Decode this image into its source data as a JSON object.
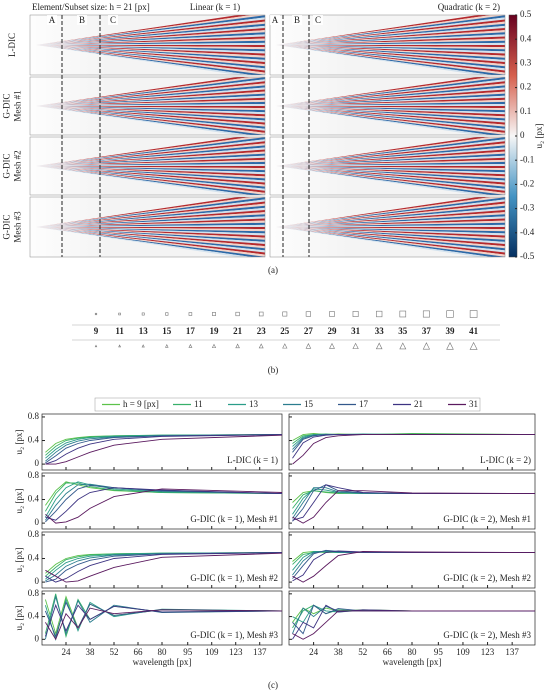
{
  "panel_a": {
    "header": {
      "left": "Element/Subset size: h = 21 [px]",
      "middle": "Linear (k = 1)",
      "right": "Quadratic (k = 2)"
    },
    "rows": [
      [
        "L-DIC"
      ],
      [
        "G-DIC",
        "Mesh #1"
      ],
      [
        "G-DIC",
        "Mesh #2"
      ],
      [
        "G-DIC",
        "Mesh #3"
      ]
    ],
    "markers": [
      "A",
      "B",
      "C"
    ],
    "colorbar": {
      "label": "u₂ [px]",
      "lim": [
        -0.5,
        0.5
      ],
      "ticks": [
        0.5,
        0.4,
        0.3,
        0.2,
        0.1,
        0,
        -0.1,
        -0.2,
        -0.3,
        -0.4,
        -0.5
      ]
    },
    "caption": "(a)"
  },
  "panel_b": {
    "sizes": [
      9,
      11,
      13,
      15,
      17,
      19,
      21,
      23,
      25,
      27,
      29,
      31,
      33,
      35,
      37,
      39,
      41
    ],
    "caption": "(b)"
  },
  "panel_c": {
    "series": [
      {
        "name": "h = 9 [px]",
        "color": "#5cc24a"
      },
      {
        "name": "11",
        "color": "#37b06a"
      },
      {
        "name": "13",
        "color": "#2a9d89"
      },
      {
        "name": "15",
        "color": "#2b7d8e"
      },
      {
        "name": "17",
        "color": "#33588c"
      },
      {
        "name": "21",
        "color": "#3d3382"
      },
      {
        "name": "31",
        "color": "#5b1a5f"
      }
    ],
    "x": [
      12,
      18,
      24,
      31,
      38,
      52,
      80,
      150
    ],
    "xlim": [
      10,
      150
    ],
    "xticks": [
      24,
      38,
      52,
      66,
      80,
      95,
      109,
      123,
      137
    ],
    "ylim": [
      -0.1,
      0.85
    ],
    "yticks": [
      0,
      0.4,
      0.8
    ],
    "xlabel": "wavelength [px]",
    "ylabel": "u₂ [px]",
    "subplots": [
      {
        "label": "L-DIC (k = 1)",
        "values": [
          [
            0.2,
            0.35,
            0.42,
            0.45,
            0.47,
            0.48,
            0.49,
            0.5
          ],
          [
            0.15,
            0.3,
            0.4,
            0.44,
            0.46,
            0.48,
            0.49,
            0.5
          ],
          [
            0.1,
            0.25,
            0.36,
            0.42,
            0.45,
            0.47,
            0.49,
            0.5
          ],
          [
            0.05,
            0.2,
            0.32,
            0.39,
            0.43,
            0.46,
            0.48,
            0.5
          ],
          [
            0.02,
            0.14,
            0.27,
            0.35,
            0.4,
            0.45,
            0.48,
            0.5
          ],
          [
            0,
            0.06,
            0.17,
            0.27,
            0.34,
            0.42,
            0.47,
            0.5
          ],
          [
            0,
            0,
            0.04,
            0.12,
            0.2,
            0.32,
            0.42,
            0.49
          ]
        ]
      },
      {
        "label": "L-DIC (k = 2)",
        "values": [
          [
            0.4,
            0.5,
            0.52,
            0.5,
            0.51,
            0.5,
            0.52,
            0.5
          ],
          [
            0.35,
            0.48,
            0.5,
            0.51,
            0.5,
            0.5,
            0.51,
            0.5
          ],
          [
            0.3,
            0.46,
            0.5,
            0.5,
            0.5,
            0.51,
            0.5,
            0.5
          ],
          [
            0.25,
            0.44,
            0.49,
            0.5,
            0.5,
            0.5,
            0.5,
            0.5
          ],
          [
            0.2,
            0.42,
            0.48,
            0.5,
            0.5,
            0.5,
            0.5,
            0.5
          ],
          [
            0.1,
            0.36,
            0.46,
            0.49,
            0.5,
            0.5,
            0.5,
            0.5
          ],
          [
            0,
            0.15,
            0.35,
            0.45,
            0.48,
            0.5,
            0.5,
            0.5
          ]
        ]
      },
      {
        "label": "G-DIC (k = 1), Mesh #1",
        "values": [
          [
            0.3,
            0.55,
            0.7,
            0.65,
            0.6,
            0.55,
            0.52,
            0.5
          ],
          [
            0.2,
            0.5,
            0.68,
            0.68,
            0.62,
            0.56,
            0.52,
            0.5
          ],
          [
            0.1,
            0.4,
            0.6,
            0.7,
            0.65,
            0.58,
            0.53,
            0.5
          ],
          [
            0.05,
            0.3,
            0.5,
            0.65,
            0.66,
            0.6,
            0.54,
            0.5
          ],
          [
            0.02,
            0.2,
            0.4,
            0.58,
            0.64,
            0.6,
            0.55,
            0.5
          ],
          [
            0.1,
            0.05,
            0.2,
            0.4,
            0.52,
            0.6,
            0.56,
            0.5
          ],
          [
            0.15,
            0,
            0.02,
            0.1,
            0.25,
            0.45,
            0.58,
            0.52
          ]
        ]
      },
      {
        "label": "G-DIC (k = 2), Mesh #1",
        "values": [
          [
            0.35,
            0.52,
            0.55,
            0.52,
            0.5,
            0.51,
            0.5,
            0.5
          ],
          [
            0.25,
            0.48,
            0.55,
            0.53,
            0.51,
            0.5,
            0.5,
            0.5
          ],
          [
            0.15,
            0.42,
            0.58,
            0.56,
            0.52,
            0.5,
            0.5,
            0.5
          ],
          [
            0.08,
            0.35,
            0.6,
            0.6,
            0.53,
            0.51,
            0.5,
            0.5
          ],
          [
            0.03,
            0.25,
            0.55,
            0.65,
            0.55,
            0.51,
            0.5,
            0.5
          ],
          [
            0.05,
            0.1,
            0.35,
            0.65,
            0.6,
            0.52,
            0.5,
            0.5
          ],
          [
            0.1,
            0,
            0.1,
            0.35,
            0.55,
            0.55,
            0.51,
            0.5
          ]
        ]
      },
      {
        "label": "G-DIC (k = 1), Mesh #2",
        "values": [
          [
            0.15,
            0.3,
            0.4,
            0.45,
            0.47,
            0.48,
            0.49,
            0.5
          ],
          [
            0.1,
            0.25,
            0.38,
            0.43,
            0.46,
            0.48,
            0.49,
            0.5
          ],
          [
            0.05,
            0.2,
            0.33,
            0.4,
            0.44,
            0.47,
            0.49,
            0.5
          ],
          [
            0.02,
            0.12,
            0.27,
            0.36,
            0.41,
            0.46,
            0.48,
            0.5
          ],
          [
            0,
            0.05,
            0.2,
            0.3,
            0.37,
            0.44,
            0.48,
            0.5
          ],
          [
            0.1,
            0,
            0.06,
            0.18,
            0.28,
            0.4,
            0.47,
            0.5
          ],
          [
            0.2,
            0.1,
            0,
            0.02,
            0.1,
            0.25,
            0.42,
            0.49
          ]
        ]
      },
      {
        "label": "G-DIC (k = 2), Mesh #2",
        "values": [
          [
            0.35,
            0.5,
            0.52,
            0.5,
            0.51,
            0.5,
            0.5,
            0.5
          ],
          [
            0.3,
            0.47,
            0.5,
            0.51,
            0.5,
            0.5,
            0.5,
            0.5
          ],
          [
            0.2,
            0.42,
            0.52,
            0.52,
            0.5,
            0.5,
            0.5,
            0.5
          ],
          [
            0.12,
            0.36,
            0.5,
            0.53,
            0.51,
            0.5,
            0.5,
            0.5
          ],
          [
            0.06,
            0.28,
            0.48,
            0.54,
            0.52,
            0.5,
            0.5,
            0.5
          ],
          [
            0.02,
            0.12,
            0.38,
            0.5,
            0.53,
            0.51,
            0.5,
            0.5
          ],
          [
            0.1,
            0,
            0.1,
            0.28,
            0.45,
            0.52,
            0.51,
            0.5
          ]
        ]
      },
      {
        "label": "G-DIC (k = 1), Mesh #3",
        "values": [
          [
            0.7,
            0.1,
            0.75,
            0.2,
            0.62,
            0.42,
            0.52,
            0.5
          ],
          [
            0.1,
            0.8,
            0.05,
            0.7,
            0.35,
            0.58,
            0.48,
            0.5
          ],
          [
            0.6,
            0,
            0.7,
            0.15,
            0.65,
            0.4,
            0.53,
            0.5
          ],
          [
            0,
            0.75,
            0.1,
            0.68,
            0.3,
            0.6,
            0.47,
            0.5
          ],
          [
            0.5,
            0.05,
            0.65,
            0.2,
            0.62,
            0.42,
            0.52,
            0.5
          ],
          [
            0.05,
            0.6,
            0.15,
            0.6,
            0.35,
            0.58,
            0.48,
            0.5
          ],
          [
            0.3,
            0,
            0.45,
            0.2,
            0.55,
            0.45,
            0.52,
            0.5
          ]
        ]
      },
      {
        "label": "G-DIC (k = 2), Mesh #3",
        "values": [
          [
            0.3,
            0.55,
            0.45,
            0.55,
            0.5,
            0.52,
            0.5,
            0.5
          ],
          [
            0.2,
            0.5,
            0.6,
            0.45,
            0.52,
            0.5,
            0.5,
            0.5
          ],
          [
            0.4,
            0.3,
            0.6,
            0.5,
            0.48,
            0.51,
            0.5,
            0.5
          ],
          [
            0.1,
            0.55,
            0.4,
            0.58,
            0.5,
            0.5,
            0.5,
            0.5
          ],
          [
            0.3,
            0.1,
            0.6,
            0.45,
            0.54,
            0.5,
            0.5,
            0.5
          ],
          [
            0,
            0.3,
            0.2,
            0.6,
            0.48,
            0.52,
            0.5,
            0.5
          ],
          [
            0.1,
            0,
            0.1,
            0.3,
            0.5,
            0.5,
            0.5,
            0.5
          ]
        ]
      }
    ],
    "caption": "(c)"
  }
}
